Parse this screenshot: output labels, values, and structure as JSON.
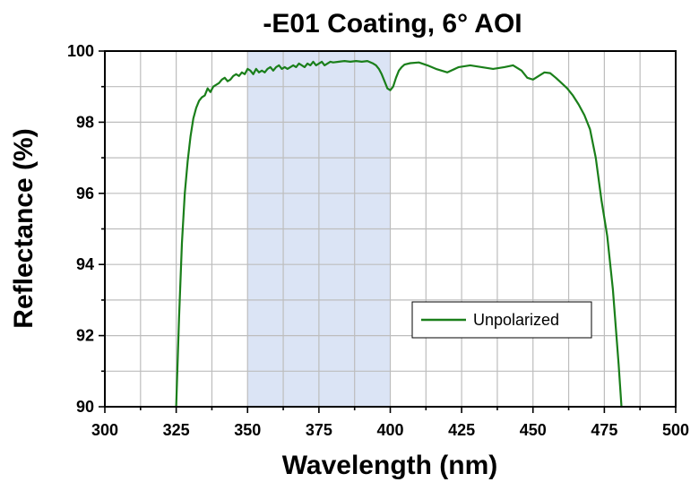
{
  "chart_data": {
    "type": "line",
    "title": "-E01 Coating, 6° AOI",
    "xlabel": "Wavelength (nm)",
    "ylabel": "Reflectance (%)",
    "xlim": [
      300,
      500
    ],
    "ylim": [
      90,
      100
    ],
    "xticks": [
      300,
      325,
      350,
      375,
      400,
      425,
      450,
      475,
      500
    ],
    "yticks": [
      90,
      92,
      94,
      96,
      98,
      100
    ],
    "grid": true,
    "legend_position": "center-right",
    "highlight_band": {
      "x_start": 350,
      "x_end": 400,
      "color": "#dbe4f5"
    },
    "series": [
      {
        "name": "Unpolarized",
        "color": "#1a7f1a",
        "x": [
          325,
          326,
          327,
          328,
          329,
          330,
          331,
          332,
          333,
          334,
          335,
          336,
          337,
          338,
          339,
          340,
          341,
          342,
          343,
          344,
          345,
          346,
          347,
          348,
          349,
          350,
          351,
          352,
          353,
          354,
          355,
          356,
          357,
          358,
          359,
          360,
          361,
          362,
          363,
          364,
          365,
          366,
          367,
          368,
          369,
          370,
          371,
          372,
          373,
          374,
          375,
          376,
          377,
          378,
          379,
          380,
          382,
          384,
          386,
          388,
          390,
          392,
          394,
          395,
          396,
          397,
          398,
          399,
          400,
          401,
          402,
          403,
          404,
          405,
          407,
          410,
          413,
          416,
          420,
          424,
          428,
          432,
          436,
          440,
          443,
          446,
          448,
          450,
          452,
          454,
          456,
          458,
          460,
          462,
          464,
          466,
          468,
          470,
          472,
          474,
          476,
          478,
          480,
          481
        ],
        "y": [
          90.0,
          92.5,
          94.6,
          96.0,
          96.9,
          97.6,
          98.1,
          98.4,
          98.6,
          98.7,
          98.75,
          98.95,
          98.85,
          99.0,
          99.05,
          99.1,
          99.2,
          99.25,
          99.15,
          99.2,
          99.3,
          99.35,
          99.3,
          99.4,
          99.35,
          99.5,
          99.45,
          99.35,
          99.5,
          99.4,
          99.45,
          99.4,
          99.5,
          99.55,
          99.45,
          99.55,
          99.6,
          99.5,
          99.55,
          99.5,
          99.55,
          99.6,
          99.55,
          99.65,
          99.6,
          99.55,
          99.65,
          99.6,
          99.7,
          99.6,
          99.65,
          99.7,
          99.6,
          99.65,
          99.7,
          99.68,
          99.7,
          99.72,
          99.7,
          99.72,
          99.7,
          99.72,
          99.65,
          99.6,
          99.5,
          99.35,
          99.15,
          98.95,
          98.9,
          99.0,
          99.25,
          99.45,
          99.55,
          99.62,
          99.66,
          99.68,
          99.6,
          99.5,
          99.4,
          99.55,
          99.6,
          99.55,
          99.5,
          99.55,
          99.6,
          99.45,
          99.25,
          99.2,
          99.3,
          99.4,
          99.38,
          99.25,
          99.1,
          98.95,
          98.75,
          98.5,
          98.2,
          97.8,
          97.0,
          95.8,
          94.8,
          93.3,
          91.2,
          90.0
        ]
      }
    ]
  }
}
